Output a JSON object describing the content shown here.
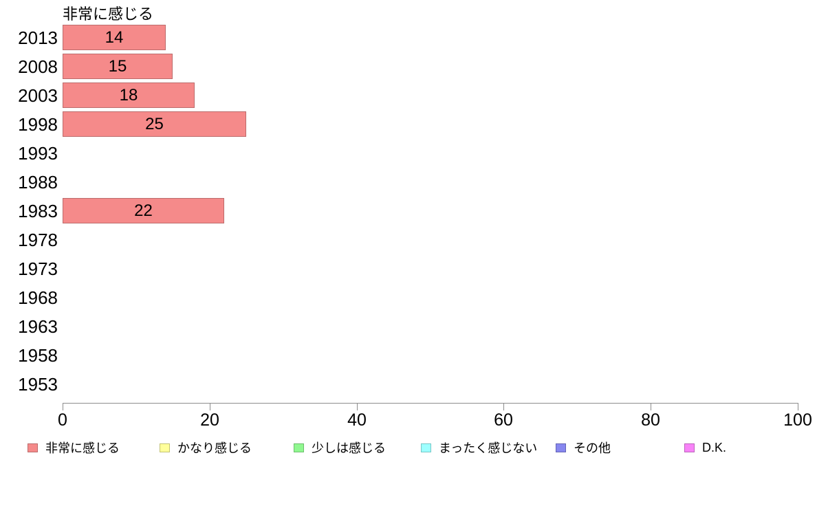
{
  "chart_data": {
    "type": "bar",
    "orientation": "horizontal",
    "title": "非常に感じる",
    "categories": [
      "2013",
      "2008",
      "2003",
      "1998",
      "1993",
      "1988",
      "1983",
      "1978",
      "1973",
      "1968",
      "1963",
      "1958",
      "1953"
    ],
    "values": [
      14,
      15,
      18,
      25,
      null,
      null,
      22,
      null,
      null,
      null,
      null,
      null,
      null
    ],
    "xlabel": "",
    "ylabel": "",
    "xlim": [
      0,
      100
    ],
    "x_ticks": [
      0,
      20,
      40,
      60,
      80,
      100
    ],
    "grid": false,
    "legend_position": "bottom",
    "bar_fill": "#f58a8a",
    "bar_border": "#bc6b6b",
    "axis_color": "#8c8c8c",
    "legend": [
      {
        "label": "非常に感じる",
        "color": "#f58a8a",
        "border": "#bc6b6b"
      },
      {
        "label": "かなり感じる",
        "color": "#ffff9b",
        "border": "#c2c273"
      },
      {
        "label": "少しは感じる",
        "color": "#90f890",
        "border": "#6dbe6d"
      },
      {
        "label": "まったく感じない",
        "color": "#9effff",
        "border": "#76c6c6"
      },
      {
        "label": "その他",
        "color": "#8787ef",
        "border": "#6363b5"
      },
      {
        "label": "D.K.",
        "color": "#f883f8",
        "border": "#bc63bc"
      }
    ]
  }
}
